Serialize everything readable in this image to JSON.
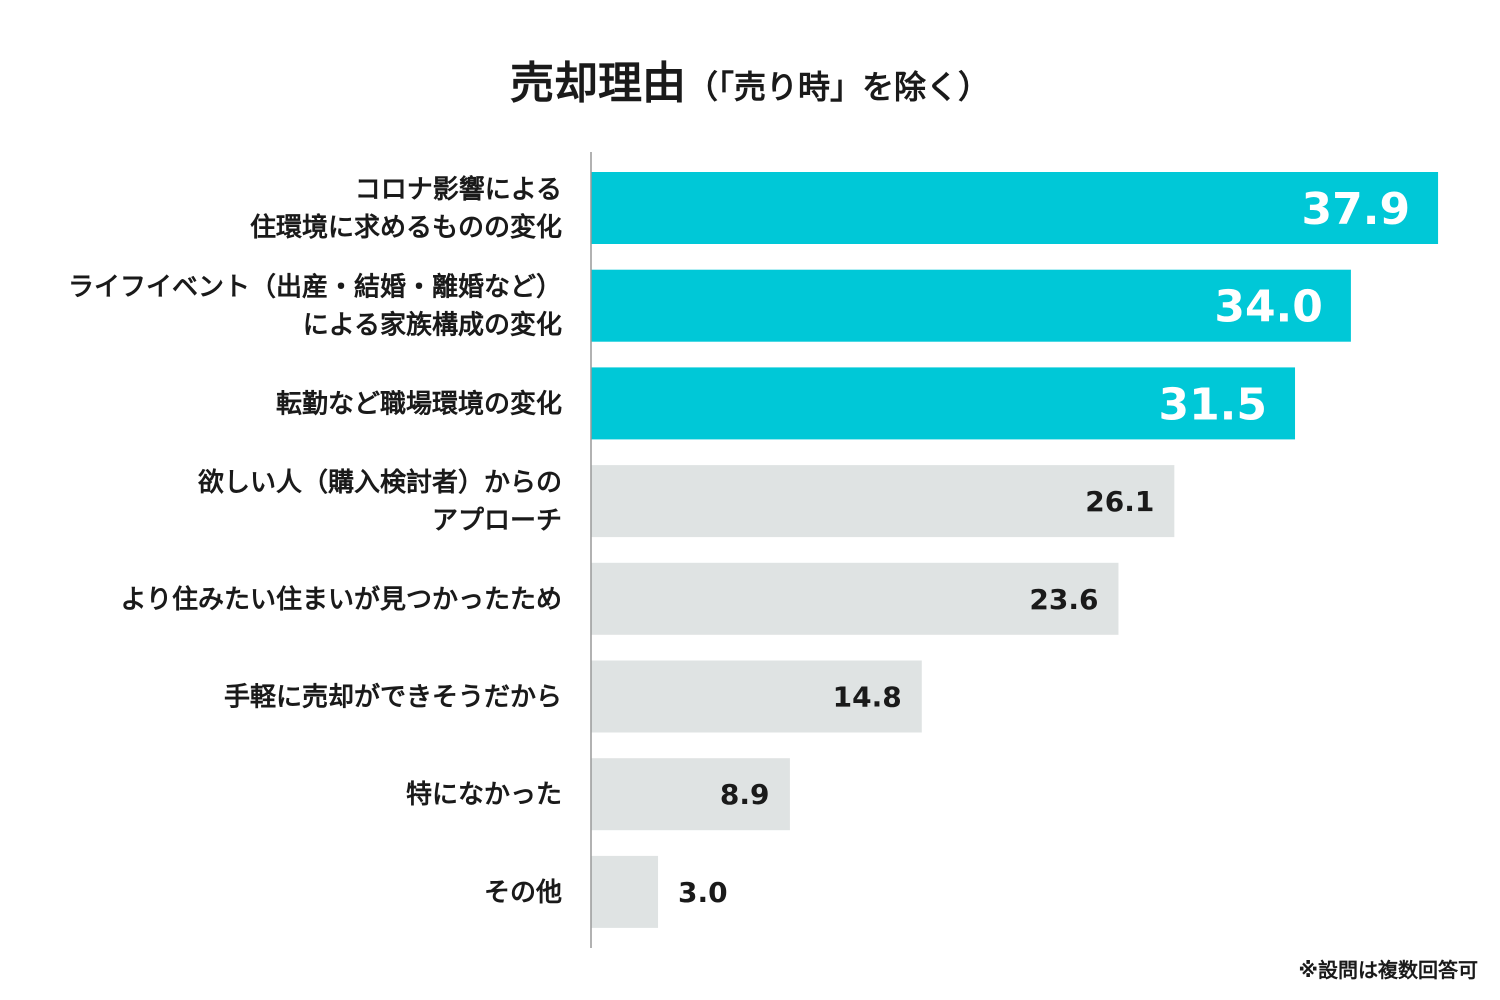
{
  "chart_data": {
    "type": "bar",
    "orientation": "horizontal",
    "title": "売却理由",
    "subtitle": "（「売り時」を除く）",
    "categories": [
      [
        "コロナ影響による",
        "住環境に求めるものの変化"
      ],
      [
        "ライフイベント（出産・結婚・離婚など）",
        "による家族構成の変化"
      ],
      [
        "転勤など職場環境の変化"
      ],
      [
        "欲しい人（購入検討者）からの",
        "アプローチ"
      ],
      [
        "より住みたい住まいが見つかったため"
      ],
      [
        "手軽に売却ができそうだから"
      ],
      [
        "特になかった"
      ],
      [
        "その他"
      ]
    ],
    "values": [
      37.9,
      34.0,
      31.5,
      26.1,
      23.6,
      14.8,
      8.9,
      3.0
    ],
    "value_labels": [
      "37.9",
      "34.0",
      "31.5",
      "26.1",
      "23.6",
      "14.8",
      "8.9",
      "3.0"
    ],
    "highlight_count": 3,
    "xlim": [
      0,
      38
    ],
    "grid": false,
    "legend": "none",
    "colors": {
      "highlight": "#00c8d7",
      "normal": "#dfe3e3",
      "axis": "#999999",
      "highlight_text": "#ffffff",
      "normal_text": "#1a1a1a"
    },
    "footnote": "※設問は複数回答可"
  }
}
